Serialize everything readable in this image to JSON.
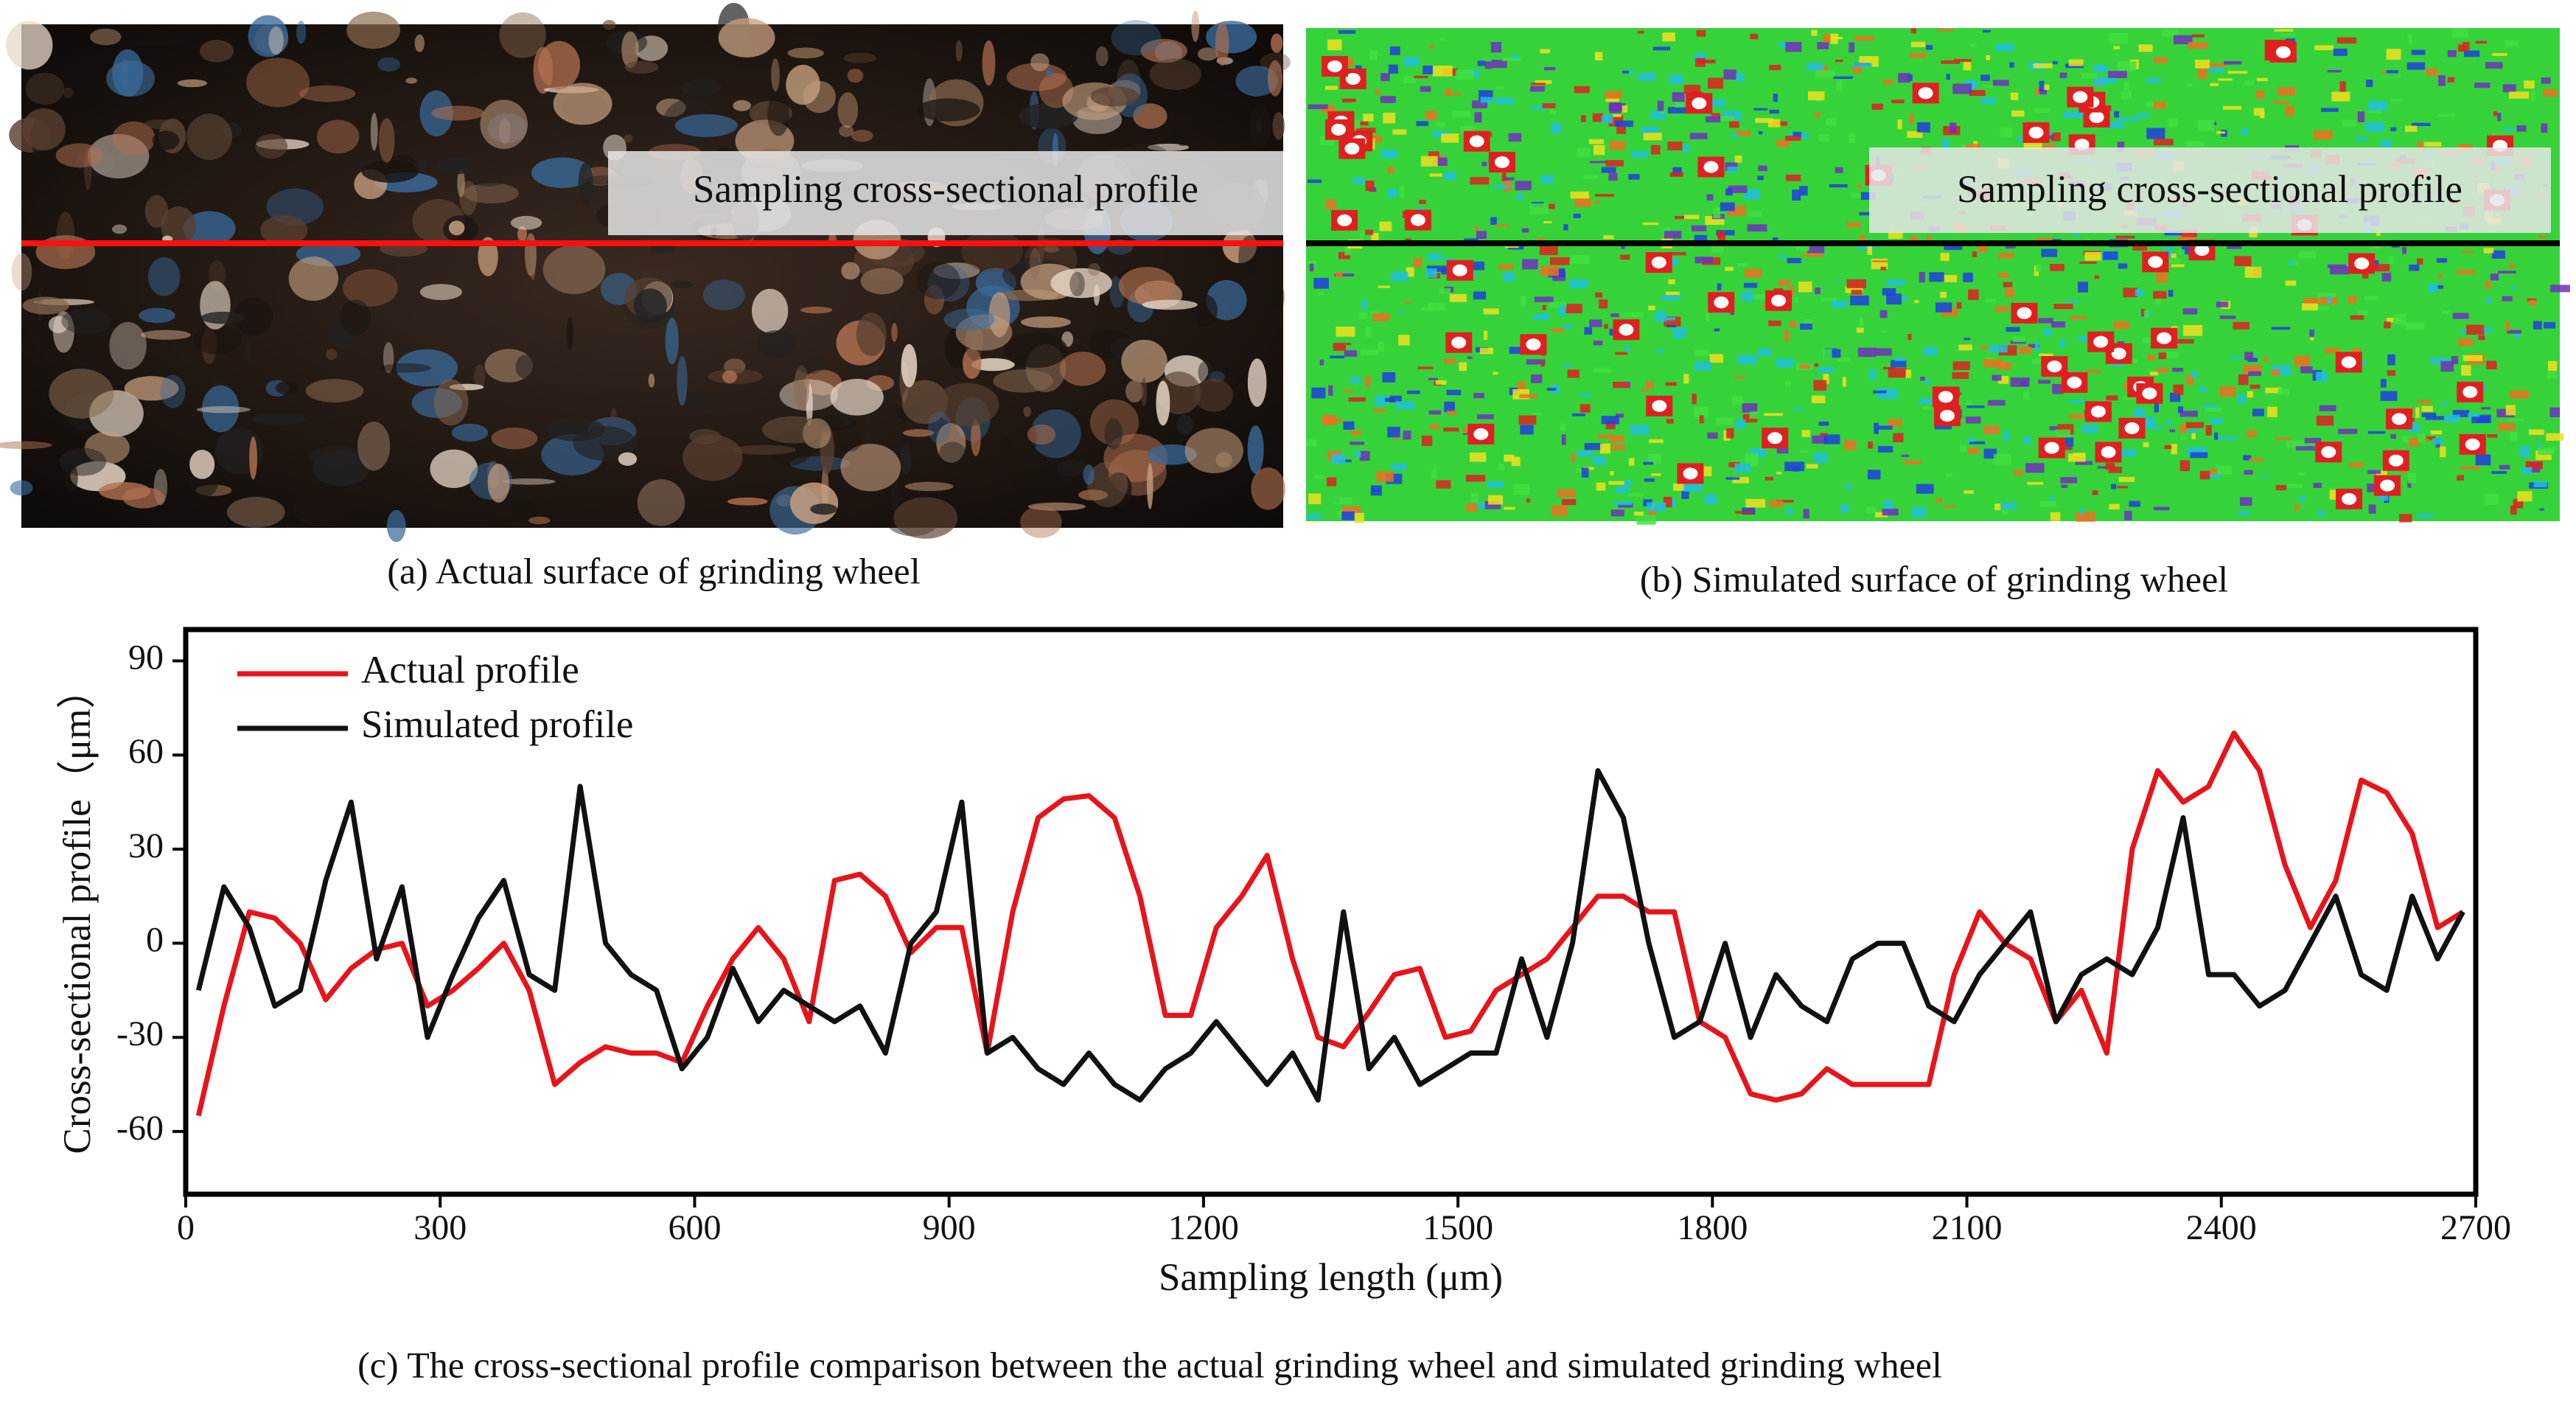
{
  "panels": [
    {
      "caption": "(a) Actual surface of grinding wheel",
      "overlay_label": "Sampling cross-sectional profile"
    },
    {
      "caption": "(b) Simulated surface of grinding wheel",
      "overlay_label": "Sampling cross-sectional profile"
    }
  ],
  "chart_caption": "(c) The cross-sectional profile comparison between the actual grinding wheel and simulated grinding wheel",
  "chart_data": {
    "type": "line",
    "xlabel": "Sampling length (μm)",
    "ylabel": "Cross-sectional profile（μm）",
    "xlim": [
      0,
      2700
    ],
    "ylim": [
      -80,
      100
    ],
    "xticks": [
      0,
      300,
      600,
      900,
      1200,
      1500,
      1800,
      2100,
      2400,
      2700
    ],
    "yticks": [
      -60,
      -30,
      0,
      30,
      60,
      90
    ],
    "grid": false,
    "legend": "upper left",
    "x": [
      15,
      45,
      75,
      105,
      135,
      165,
      195,
      225,
      255,
      285,
      315,
      345,
      375,
      405,
      435,
      465,
      495,
      525,
      555,
      585,
      615,
      645,
      675,
      705,
      735,
      765,
      795,
      825,
      855,
      885,
      915,
      945,
      975,
      1005,
      1035,
      1065,
      1095,
      1125,
      1155,
      1185,
      1215,
      1245,
      1275,
      1305,
      1335,
      1365,
      1395,
      1425,
      1455,
      1485,
      1515,
      1545,
      1575,
      1605,
      1635,
      1665,
      1695,
      1725,
      1755,
      1785,
      1815,
      1845,
      1875,
      1905,
      1935,
      1965,
      1995,
      2025,
      2055,
      2085,
      2115,
      2145,
      2175,
      2205,
      2235,
      2265,
      2295,
      2325,
      2355,
      2385,
      2415,
      2445,
      2475,
      2505,
      2535,
      2565,
      2595,
      2625,
      2655,
      2685
    ],
    "series": [
      {
        "name": "Actual profile",
        "color": "#e8141b",
        "values": [
          -55,
          -20,
          10,
          8,
          0,
          -18,
          -8,
          -2,
          0,
          -20,
          -15,
          -8,
          0,
          -15,
          -45,
          -38,
          -33,
          -35,
          -35,
          -38,
          -20,
          -5,
          5,
          -5,
          -25,
          20,
          22,
          15,
          -3,
          5,
          5,
          -35,
          10,
          40,
          46,
          47,
          40,
          15,
          -23,
          -23,
          5,
          15,
          28,
          -5,
          -30,
          -33,
          -22,
          -10,
          -8,
          -30,
          -28,
          -15,
          -10,
          -5,
          5,
          15,
          15,
          10,
          10,
          -25,
          -30,
          -48,
          -50,
          -48,
          -40,
          -45,
          -45,
          -45,
          -45,
          -10,
          10,
          0,
          -5,
          -25,
          -15,
          -35,
          30,
          55,
          45,
          50,
          67,
          55,
          25,
          5,
          20,
          52,
          48,
          35,
          5,
          10
        ]
      },
      {
        "name": "Simulated profile",
        "color": "#111111",
        "values": [
          -15,
          18,
          5,
          -20,
          -15,
          20,
          45,
          -5,
          18,
          -30,
          -10,
          8,
          20,
          -10,
          -15,
          50,
          0,
          -10,
          -15,
          -40,
          -30,
          -8,
          -25,
          -15,
          -20,
          -25,
          -20,
          -35,
          0,
          10,
          45,
          -35,
          -30,
          -40,
          -45,
          -35,
          -45,
          -50,
          -40,
          -35,
          -25,
          -35,
          -45,
          -35,
          -50,
          10,
          -40,
          -30,
          -45,
          -40,
          -35,
          -35,
          -5,
          -30,
          0,
          55,
          40,
          0,
          -30,
          -25,
          0,
          -30,
          -10,
          -20,
          -25,
          -5,
          0,
          0,
          -20,
          -25,
          -10,
          0,
          10,
          -25,
          -10,
          -5,
          -10,
          5,
          40,
          -10,
          -10,
          -20,
          -15,
          0,
          15,
          -10,
          -15,
          15,
          -5,
          10
        ]
      }
    ]
  }
}
